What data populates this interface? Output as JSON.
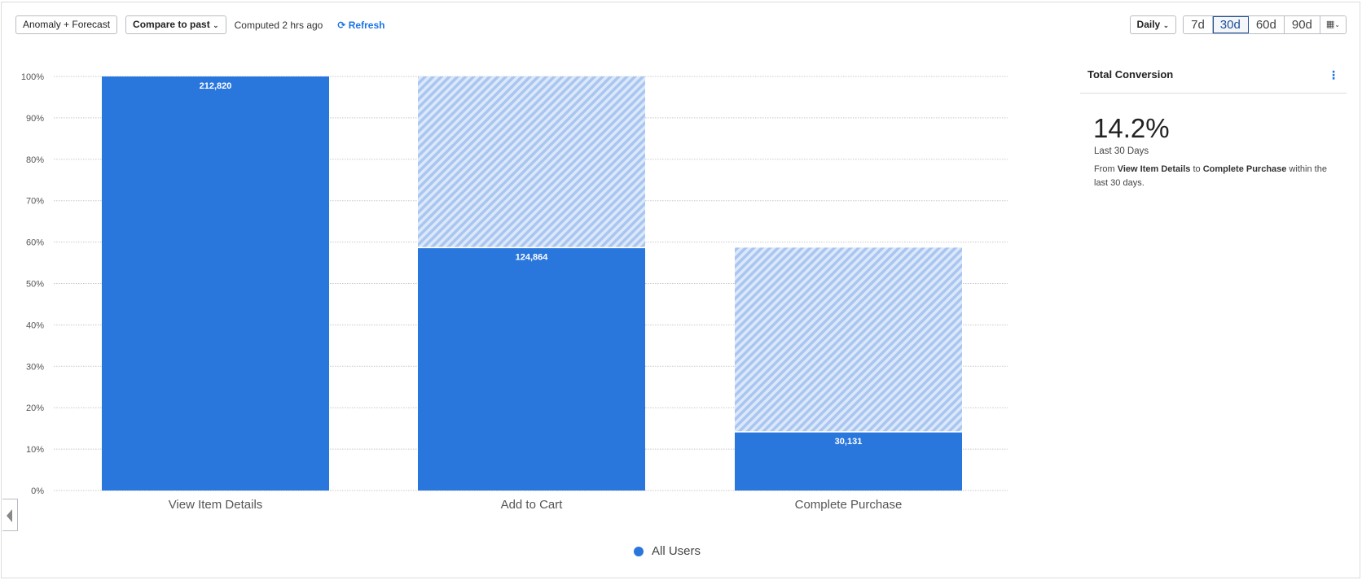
{
  "toolbar": {
    "anomaly_label": "Anomaly + Forecast",
    "compare_label": "Compare to past",
    "computed_text": "Computed 2 hrs ago",
    "refresh_label": "Refresh",
    "interval_label": "Daily",
    "ranges": [
      "7d",
      "30d",
      "60d",
      "90d"
    ],
    "active_range": "30d",
    "calendar_icon": "calendar-icon"
  },
  "panel": {
    "title": "Total Conversion",
    "value": "14.2%",
    "period": "Last 30 Days",
    "desc_from": "From ",
    "desc_start": "View Item Details",
    "desc_to": " to ",
    "desc_end": "Complete Purchase",
    "desc_tail": " within the last 30 days."
  },
  "colors": {
    "bar": "#2976dd",
    "hatch": "#c3d7f5",
    "accent": "#1a73e8"
  },
  "chart_data": {
    "type": "bar",
    "categories": [
      "View Item Details",
      "Add to Cart",
      "Complete Purchase"
    ],
    "counts": [
      212820,
      124864,
      30131
    ],
    "count_labels": [
      "212,820",
      "124,864",
      "30,131"
    ],
    "values_pct": [
      100,
      58.67,
      14.16
    ],
    "dropoff_from_pct": [
      null,
      100,
      58.67
    ],
    "yticks": [
      "0%",
      "10%",
      "20%",
      "30%",
      "40%",
      "50%",
      "60%",
      "70%",
      "80%",
      "90%",
      "100%"
    ],
    "ylim": [
      0,
      100
    ],
    "grid": true,
    "legend": [
      {
        "name": "All Users",
        "color": "#2976dd"
      }
    ],
    "legend_position": "bottom"
  }
}
